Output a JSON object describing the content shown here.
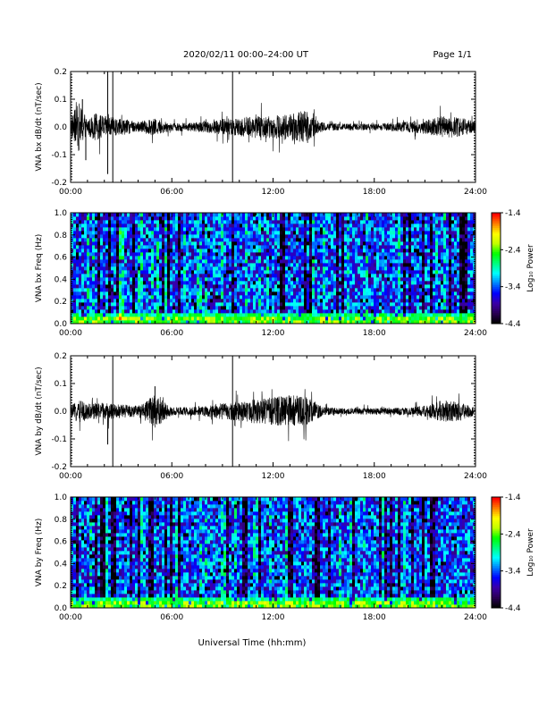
{
  "header": {
    "title": "2020/02/11  00:00–24:00 UT",
    "page": "Page 1/1"
  },
  "footer": {
    "xlabel": "Universal Time (hh:mm)"
  },
  "colors": {
    "trace": "#000000",
    "colormap": [
      "#000000",
      "#2a0055",
      "#3a00a8",
      "#0000ff",
      "#0080ff",
      "#00ffff",
      "#00ff80",
      "#00ff00",
      "#c0ff00",
      "#ffff00",
      "#ff8000",
      "#ff0000"
    ]
  },
  "chart_data": [
    {
      "type": "line",
      "ylabel": "VNA bx dB/dt (nT/sec)",
      "xlim": [
        0,
        24
      ],
      "ylim": [
        -0.2,
        0.2
      ],
      "y_ticks": [
        "-0.2",
        "-0.1",
        "0.0",
        "0.1",
        "0.2"
      ],
      "x_ticks": [
        "00:00",
        "06:00",
        "12:00",
        "18:00",
        "24:00"
      ],
      "envelope": [
        {
          "t": 0.0,
          "amp": 0.035
        },
        {
          "t": 0.5,
          "amp": 0.09
        },
        {
          "t": 1.0,
          "amp": 0.03
        },
        {
          "t": 1.5,
          "amp": 0.05
        },
        {
          "t": 2.0,
          "amp": 0.04
        },
        {
          "t": 3.0,
          "amp": 0.03
        },
        {
          "t": 4.0,
          "amp": 0.02
        },
        {
          "t": 5.0,
          "amp": 0.03
        },
        {
          "t": 6.0,
          "amp": 0.015
        },
        {
          "t": 7.0,
          "amp": 0.015
        },
        {
          "t": 8.0,
          "amp": 0.02
        },
        {
          "t": 9.0,
          "amp": 0.03
        },
        {
          "t": 10.0,
          "amp": 0.035
        },
        {
          "t": 11.0,
          "amp": 0.04
        },
        {
          "t": 12.0,
          "amp": 0.04
        },
        {
          "t": 13.0,
          "amp": 0.05
        },
        {
          "t": 14.0,
          "amp": 0.06
        },
        {
          "t": 14.5,
          "amp": 0.03
        },
        {
          "t": 15.0,
          "amp": 0.015
        },
        {
          "t": 16.0,
          "amp": 0.012
        },
        {
          "t": 17.0,
          "amp": 0.012
        },
        {
          "t": 18.0,
          "amp": 0.012
        },
        {
          "t": 19.0,
          "amp": 0.015
        },
        {
          "t": 20.0,
          "amp": 0.02
        },
        {
          "t": 21.0,
          "amp": 0.025
        },
        {
          "t": 22.0,
          "amp": 0.04
        },
        {
          "t": 23.0,
          "amp": 0.035
        },
        {
          "t": 24.0,
          "amp": 0.02
        }
      ],
      "spikes": [
        {
          "t": 2.2,
          "y": 0.2
        },
        {
          "t": 2.2,
          "y": -0.17
        },
        {
          "t": 2.5,
          "y": 0.2
        },
        {
          "t": 2.5,
          "y": -0.2
        },
        {
          "t": 9.6,
          "y": 0.2
        },
        {
          "t": 9.6,
          "y": -0.2
        },
        {
          "t": 0.7,
          "y": 0.1
        },
        {
          "t": 0.9,
          "y": -0.12
        }
      ]
    },
    {
      "type": "heatmap",
      "ylabel": "VNA bx Freq (Hz)",
      "xlim": [
        0,
        24
      ],
      "ylim": [
        0,
        1.0
      ],
      "y_ticks": [
        "0.0",
        "0.2",
        "0.4",
        "0.6",
        "0.8",
        "1.0"
      ],
      "x_ticks": [
        "00:00",
        "06:00",
        "12:00",
        "18:00",
        "24:00"
      ],
      "colorbar": {
        "label": "Log₁₀ Power",
        "range": [
          -4.4,
          -1.4
        ],
        "ticks": [
          "-1.4",
          "-2.4",
          "-3.4",
          "-4.4"
        ]
      }
    },
    {
      "type": "line",
      "ylabel": "VNA by dB/dt (nT/sec)",
      "xlim": [
        0,
        24
      ],
      "ylim": [
        -0.2,
        0.2
      ],
      "y_ticks": [
        "-0.2",
        "-0.1",
        "0.0",
        "0.1",
        "0.2"
      ],
      "x_ticks": [
        "00:00",
        "06:00",
        "12:00",
        "18:00",
        "24:00"
      ],
      "envelope": [
        {
          "t": 0.0,
          "amp": 0.02
        },
        {
          "t": 0.5,
          "amp": 0.04
        },
        {
          "t": 1.0,
          "amp": 0.03
        },
        {
          "t": 2.0,
          "amp": 0.03
        },
        {
          "t": 3.0,
          "amp": 0.025
        },
        {
          "t": 4.0,
          "amp": 0.02
        },
        {
          "t": 5.0,
          "amp": 0.06
        },
        {
          "t": 6.0,
          "amp": 0.015
        },
        {
          "t": 7.0,
          "amp": 0.015
        },
        {
          "t": 8.0,
          "amp": 0.02
        },
        {
          "t": 9.0,
          "amp": 0.03
        },
        {
          "t": 10.0,
          "amp": 0.035
        },
        {
          "t": 11.0,
          "amp": 0.045
        },
        {
          "t": 12.0,
          "amp": 0.05
        },
        {
          "t": 13.0,
          "amp": 0.06
        },
        {
          "t": 14.0,
          "amp": 0.05
        },
        {
          "t": 15.0,
          "amp": 0.015
        },
        {
          "t": 16.0,
          "amp": 0.012
        },
        {
          "t": 17.0,
          "amp": 0.012
        },
        {
          "t": 18.0,
          "amp": 0.012
        },
        {
          "t": 19.0,
          "amp": 0.012
        },
        {
          "t": 20.0,
          "amp": 0.015
        },
        {
          "t": 21.0,
          "amp": 0.02
        },
        {
          "t": 22.0,
          "amp": 0.04
        },
        {
          "t": 23.0,
          "amp": 0.035
        },
        {
          "t": 24.0,
          "amp": 0.015
        }
      ],
      "spikes": [
        {
          "t": 2.5,
          "y": 0.2
        },
        {
          "t": 2.5,
          "y": -0.2
        },
        {
          "t": 9.6,
          "y": 0.2
        },
        {
          "t": 9.6,
          "y": -0.2
        },
        {
          "t": 2.2,
          "y": -0.12
        },
        {
          "t": 5.0,
          "y": 0.09
        }
      ]
    },
    {
      "type": "heatmap",
      "ylabel": "VNA by Freq (Hz)",
      "xlim": [
        0,
        24
      ],
      "ylim": [
        0,
        1.0
      ],
      "y_ticks": [
        "0.0",
        "0.2",
        "0.4",
        "0.6",
        "0.8",
        "1.0"
      ],
      "x_ticks": [
        "00:00",
        "06:00",
        "12:00",
        "18:00",
        "24:00"
      ],
      "colorbar": {
        "label": "Log₁₀ Power",
        "range": [
          -4.4,
          -1.4
        ],
        "ticks": [
          "-1.4",
          "-2.4",
          "-3.4",
          "-4.4"
        ]
      }
    }
  ]
}
